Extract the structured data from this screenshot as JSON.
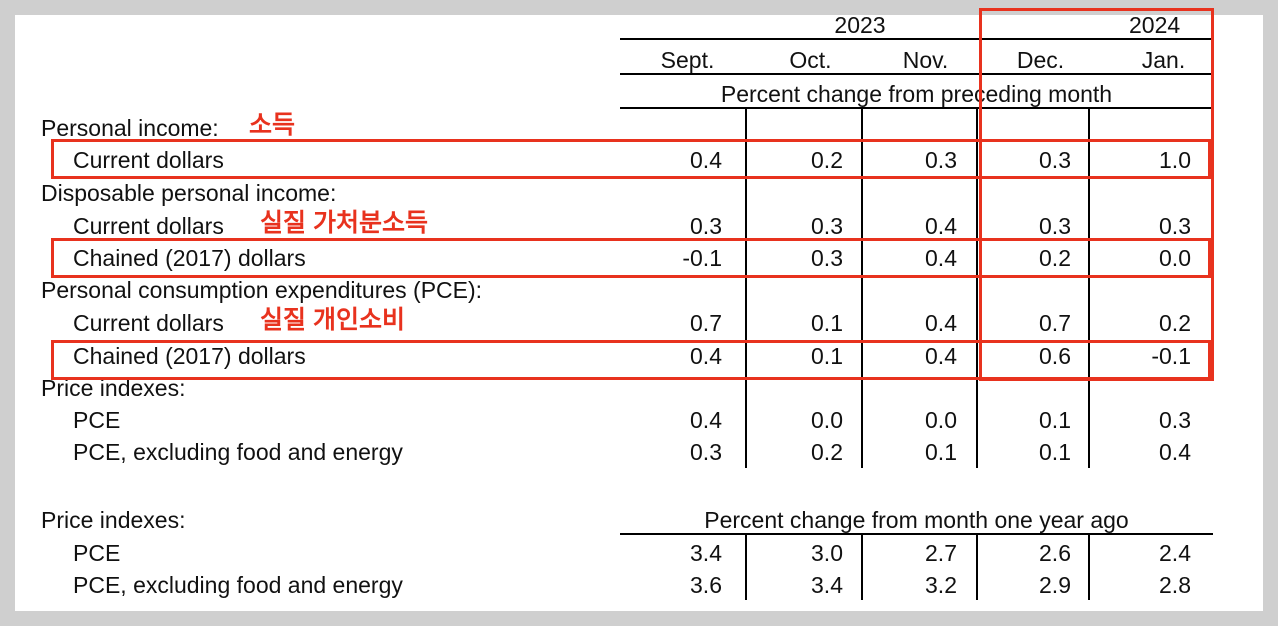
{
  "header": {
    "year_2023": "2023",
    "year_2024": "2024",
    "months": [
      "Sept.",
      "Oct.",
      "Nov.",
      "Dec.",
      "Jan."
    ],
    "subheader_1": "Percent change from preceding month",
    "subheader_2": "Percent change from month one year ago"
  },
  "sections": {
    "personal_income": {
      "label": "Personal income:",
      "rows": [
        {
          "label": "Current dollars",
          "values": [
            "0.4",
            "0.2",
            "0.3",
            "0.3",
            "1.0"
          ]
        }
      ]
    },
    "disposable_income": {
      "label": "Disposable personal income:",
      "rows": [
        {
          "label": "Current dollars",
          "values": [
            "0.3",
            "0.3",
            "0.4",
            "0.3",
            "0.3"
          ]
        },
        {
          "label": "Chained (2017) dollars",
          "values": [
            "-0.1",
            "0.3",
            "0.4",
            "0.2",
            "0.0"
          ]
        }
      ]
    },
    "pce": {
      "label": "Personal consumption expenditures (PCE):",
      "rows": [
        {
          "label": "Current dollars",
          "values": [
            "0.7",
            "0.1",
            "0.4",
            "0.7",
            "0.2"
          ]
        },
        {
          "label": "Chained (2017) dollars",
          "values": [
            "0.4",
            "0.1",
            "0.4",
            "0.6",
            "-0.1"
          ]
        }
      ]
    },
    "price_indexes_monthly": {
      "label": "Price indexes:",
      "rows": [
        {
          "label": "PCE",
          "values": [
            "0.4",
            "0.0",
            "0.0",
            "0.1",
            "0.3"
          ]
        },
        {
          "label": "PCE, excluding food and energy",
          "values": [
            "0.3",
            "0.2",
            "0.1",
            "0.1",
            "0.4"
          ]
        }
      ]
    },
    "price_indexes_yearly": {
      "label": "Price indexes:",
      "rows": [
        {
          "label": "PCE",
          "values": [
            "3.4",
            "3.0",
            "2.7",
            "2.6",
            "2.4"
          ]
        },
        {
          "label": "PCE, excluding food and energy",
          "values": [
            "3.6",
            "3.4",
            "3.2",
            "2.9",
            "2.8"
          ]
        }
      ]
    }
  },
  "annotations": {
    "income": "소득",
    "real_disposable_income": "실질 가처분소득",
    "real_consumption": "실질 개인소비",
    "highlight_color": "#e8321e"
  }
}
